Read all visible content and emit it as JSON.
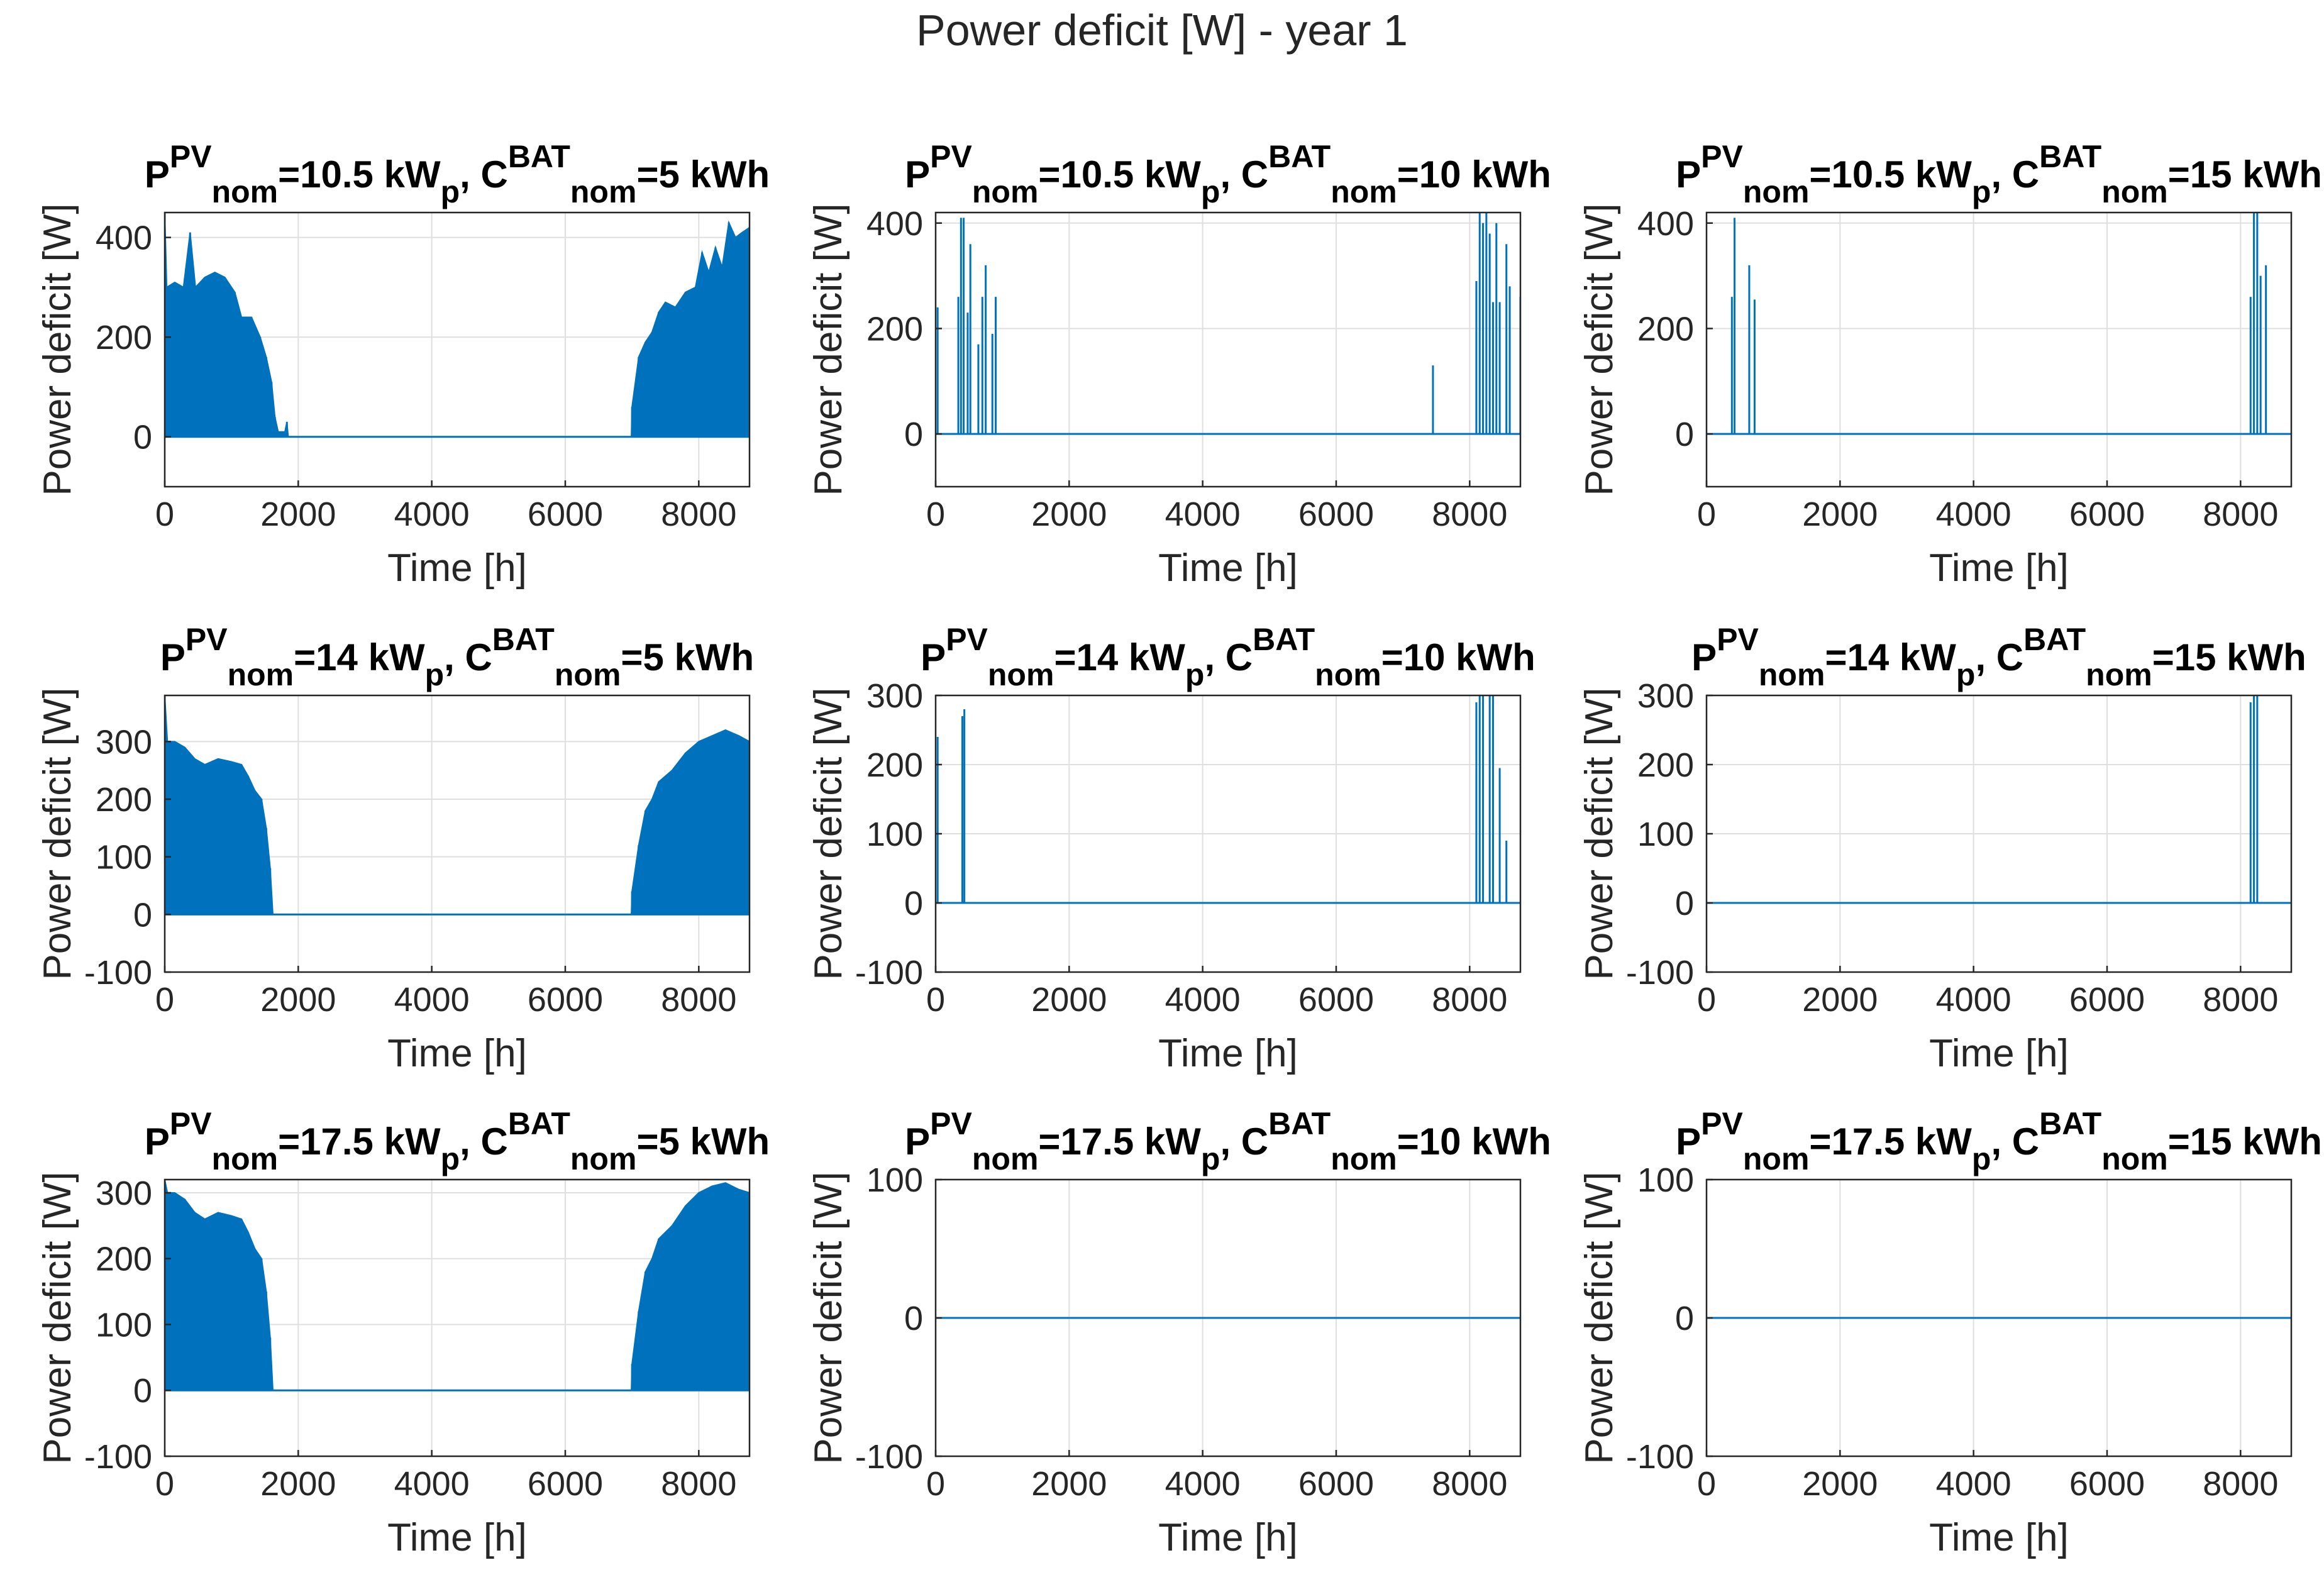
{
  "figure": {
    "title": "Power deficit [W] - year 1",
    "series_color": "#0072BD",
    "grid_color": "#DFDFDF"
  },
  "chart_data": [
    {
      "type": "area",
      "title": "P^PV_nom=10.5 kW_p, C^BAT_nom=5 kWh",
      "pv_kwp": "10.5",
      "bat_kwh": "5",
      "xlabel": "Time [h]",
      "ylabel": "Power deficit [W]",
      "xlim": [
        0,
        8760
      ],
      "ylim": [
        -100,
        450
      ],
      "xticks": [
        0,
        2000,
        4000,
        6000,
        8000
      ],
      "yticks": [
        0,
        200,
        400
      ],
      "grid": true,
      "envelope": [
        [
          0,
          450
        ],
        [
          30,
          300
        ],
        [
          150,
          310
        ],
        [
          280,
          300
        ],
        [
          380,
          410
        ],
        [
          460,
          300
        ],
        [
          600,
          320
        ],
        [
          750,
          330
        ],
        [
          900,
          320
        ],
        [
          1050,
          290
        ],
        [
          1150,
          240
        ],
        [
          1300,
          240
        ],
        [
          1430,
          200
        ],
        [
          1520,
          160
        ],
        [
          1600,
          110
        ],
        [
          1650,
          40
        ],
        [
          1700,
          10
        ],
        [
          1800,
          10
        ],
        [
          1830,
          30
        ],
        [
          1850,
          0
        ],
        [
          6990,
          0
        ],
        [
          7000,
          60
        ],
        [
          7100,
          160
        ],
        [
          7200,
          190
        ],
        [
          7300,
          210
        ],
        [
          7400,
          250
        ],
        [
          7500,
          270
        ],
        [
          7650,
          260
        ],
        [
          7800,
          290
        ],
        [
          7950,
          300
        ],
        [
          8050,
          370
        ],
        [
          8150,
          330
        ],
        [
          8250,
          380
        ],
        [
          8350,
          340
        ],
        [
          8450,
          430
        ],
        [
          8550,
          400
        ],
        [
          8650,
          410
        ],
        [
          8760,
          420
        ]
      ]
    },
    {
      "type": "spikes",
      "title": "P^PV_nom=10.5 kW_p, C^BAT_nom=10 kWh",
      "pv_kwp": "10.5",
      "bat_kwh": "10",
      "xlabel": "Time [h]",
      "ylabel": "Power deficit [W]",
      "xlim": [
        0,
        8760
      ],
      "ylim": [
        -100,
        420
      ],
      "xticks": [
        0,
        2000,
        4000,
        6000,
        8000
      ],
      "yticks": [
        0,
        200,
        400
      ],
      "grid": true,
      "spikes": [
        [
          30,
          240
        ],
        [
          340,
          260
        ],
        [
          380,
          410
        ],
        [
          420,
          410
        ],
        [
          480,
          230
        ],
        [
          520,
          360
        ],
        [
          640,
          170
        ],
        [
          700,
          260
        ],
        [
          750,
          320
        ],
        [
          850,
          190
        ],
        [
          900,
          260
        ],
        [
          7450,
          130
        ],
        [
          8100,
          290
        ],
        [
          8150,
          420
        ],
        [
          8200,
          400
        ],
        [
          8250,
          420
        ],
        [
          8300,
          380
        ],
        [
          8350,
          250
        ],
        [
          8400,
          400
        ],
        [
          8450,
          250
        ],
        [
          8550,
          360
        ],
        [
          8600,
          280
        ],
        [
          8760,
          260
        ]
      ]
    },
    {
      "type": "spikes",
      "title": "P^PV_nom=10.5 kW_p, C^BAT_nom=15 kWh",
      "pv_kwp": "10.5",
      "bat_kwh": "15",
      "xlabel": "Time [h]",
      "ylabel": "Power deficit [W]",
      "xlim": [
        0,
        8760
      ],
      "ylim": [
        -100,
        420
      ],
      "xticks": [
        0,
        2000,
        4000,
        6000,
        8000
      ],
      "yticks": [
        0,
        200,
        400
      ],
      "grid": true,
      "spikes": [
        [
          380,
          260
        ],
        [
          420,
          410
        ],
        [
          640,
          320
        ],
        [
          720,
          255
        ],
        [
          8150,
          260
        ],
        [
          8200,
          420
        ],
        [
          8250,
          420
        ],
        [
          8300,
          300
        ],
        [
          8380,
          320
        ]
      ]
    },
    {
      "type": "area",
      "title": "P^PV_nom=14 kW_p, C^BAT_nom=5 kWh",
      "pv_kwp": "14",
      "bat_kwh": "5",
      "xlabel": "Time [h]",
      "ylabel": "Power deficit [W]",
      "xlim": [
        0,
        8760
      ],
      "ylim": [
        -100,
        380
      ],
      "xticks": [
        0,
        2000,
        4000,
        6000,
        8000
      ],
      "yticks": [
        -100,
        0,
        100,
        200,
        300
      ],
      "grid": true,
      "envelope": [
        [
          0,
          380
        ],
        [
          40,
          300
        ],
        [
          150,
          300
        ],
        [
          300,
          290
        ],
        [
          450,
          270
        ],
        [
          600,
          260
        ],
        [
          800,
          270
        ],
        [
          1000,
          265
        ],
        [
          1150,
          260
        ],
        [
          1250,
          240
        ],
        [
          1350,
          215
        ],
        [
          1450,
          200
        ],
        [
          1520,
          150
        ],
        [
          1580,
          80
        ],
        [
          1620,
          0
        ],
        [
          6990,
          0
        ],
        [
          7000,
          40
        ],
        [
          7100,
          120
        ],
        [
          7200,
          180
        ],
        [
          7300,
          200
        ],
        [
          7400,
          230
        ],
        [
          7600,
          250
        ],
        [
          7800,
          280
        ],
        [
          8000,
          300
        ],
        [
          8200,
          310
        ],
        [
          8400,
          320
        ],
        [
          8600,
          310
        ],
        [
          8760,
          300
        ]
      ]
    },
    {
      "type": "spikes",
      "title": "P^PV_nom=14 kW_p, C^BAT_nom=10 kWh",
      "pv_kwp": "14",
      "bat_kwh": "10",
      "xlabel": "Time [h]",
      "ylabel": "Power deficit [W]",
      "xlim": [
        0,
        8760
      ],
      "ylim": [
        -100,
        300
      ],
      "xticks": [
        0,
        2000,
        4000,
        6000,
        8000
      ],
      "yticks": [
        -100,
        0,
        100,
        200,
        300
      ],
      "grid": true,
      "spikes": [
        [
          30,
          240
        ],
        [
          400,
          270
        ],
        [
          430,
          280
        ],
        [
          8100,
          290
        ],
        [
          8150,
          300
        ],
        [
          8200,
          300
        ],
        [
          8300,
          300
        ],
        [
          8350,
          300
        ],
        [
          8450,
          195
        ],
        [
          8550,
          90
        ]
      ]
    },
    {
      "type": "spikes",
      "title": "P^PV_nom=14 kW_p, C^BAT_nom=15 kWh",
      "pv_kwp": "14",
      "bat_kwh": "15",
      "xlabel": "Time [h]",
      "ylabel": "Power deficit [W]",
      "xlim": [
        0,
        8760
      ],
      "ylim": [
        -100,
        300
      ],
      "xticks": [
        0,
        2000,
        4000,
        6000,
        8000
      ],
      "yticks": [
        -100,
        0,
        100,
        200,
        300
      ],
      "grid": true,
      "spikes": [
        [
          8150,
          290
        ],
        [
          8200,
          300
        ],
        [
          8250,
          300
        ]
      ]
    },
    {
      "type": "area",
      "title": "P^PV_nom=17.5 kW_p, C^BAT_nom=5 kWh",
      "pv_kwp": "17.5",
      "bat_kwh": "5",
      "xlabel": "Time [h]",
      "ylabel": "Power deficit [W]",
      "xlim": [
        0,
        8760
      ],
      "ylim": [
        -100,
        320
      ],
      "xticks": [
        0,
        2000,
        4000,
        6000,
        8000
      ],
      "yticks": [
        -100,
        0,
        100,
        200,
        300
      ],
      "grid": true,
      "envelope": [
        [
          0,
          320
        ],
        [
          40,
          300
        ],
        [
          150,
          300
        ],
        [
          300,
          290
        ],
        [
          450,
          270
        ],
        [
          600,
          260
        ],
        [
          800,
          270
        ],
        [
          1000,
          265
        ],
        [
          1150,
          260
        ],
        [
          1250,
          240
        ],
        [
          1350,
          215
        ],
        [
          1450,
          200
        ],
        [
          1520,
          150
        ],
        [
          1580,
          80
        ],
        [
          1620,
          0
        ],
        [
          6990,
          0
        ],
        [
          7000,
          40
        ],
        [
          7100,
          120
        ],
        [
          7200,
          180
        ],
        [
          7300,
          200
        ],
        [
          7400,
          230
        ],
        [
          7600,
          250
        ],
        [
          7800,
          280
        ],
        [
          8000,
          300
        ],
        [
          8200,
          310
        ],
        [
          8400,
          315
        ],
        [
          8600,
          305
        ],
        [
          8760,
          300
        ]
      ]
    },
    {
      "type": "line",
      "title": "P^PV_nom=17.5 kW_p, C^BAT_nom=10 kWh",
      "pv_kwp": "17.5",
      "bat_kwh": "10",
      "xlabel": "Time [h]",
      "ylabel": "Power deficit [W]",
      "xlim": [
        0,
        8760
      ],
      "ylim": [
        -100,
        100
      ],
      "xticks": [
        0,
        2000,
        4000,
        6000,
        8000
      ],
      "yticks": [
        -100,
        0,
        100
      ],
      "grid": true,
      "spikes": []
    },
    {
      "type": "line",
      "title": "P^PV_nom=17.5 kW_p, C^BAT_nom=15 kWh",
      "pv_kwp": "17.5",
      "bat_kwh": "15",
      "xlabel": "Time [h]",
      "ylabel": "Power deficit [W]",
      "xlim": [
        0,
        8760
      ],
      "ylim": [
        -100,
        100
      ],
      "xticks": [
        0,
        2000,
        4000,
        6000,
        8000
      ],
      "yticks": [
        -100,
        0,
        100
      ],
      "grid": true,
      "spikes": []
    }
  ]
}
